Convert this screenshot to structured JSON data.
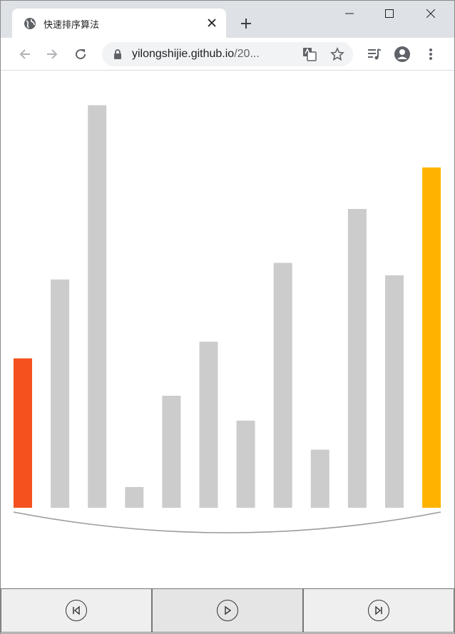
{
  "browser": {
    "tab_title": "快速排序算法",
    "url_host": "yilongshijie.github.io",
    "url_path": "/20..."
  },
  "chart_data": {
    "type": "bar",
    "values": [
      36,
      55,
      97,
      5,
      27,
      40,
      21,
      59,
      14,
      72,
      56,
      82
    ],
    "highlight": {
      "pivot_index": 0,
      "compare_index": 11
    },
    "colors": {
      "default": "#cccccc",
      "pivot": "#f4511e",
      "compare": "#ffb300"
    },
    "ylim": [
      0,
      100
    ]
  },
  "controls": [
    {
      "name": "step-back-button",
      "icon": "skip-previous-icon"
    },
    {
      "name": "replay-button",
      "icon": "replay-icon"
    },
    {
      "name": "step-forward-button",
      "icon": "skip-next-icon"
    }
  ]
}
